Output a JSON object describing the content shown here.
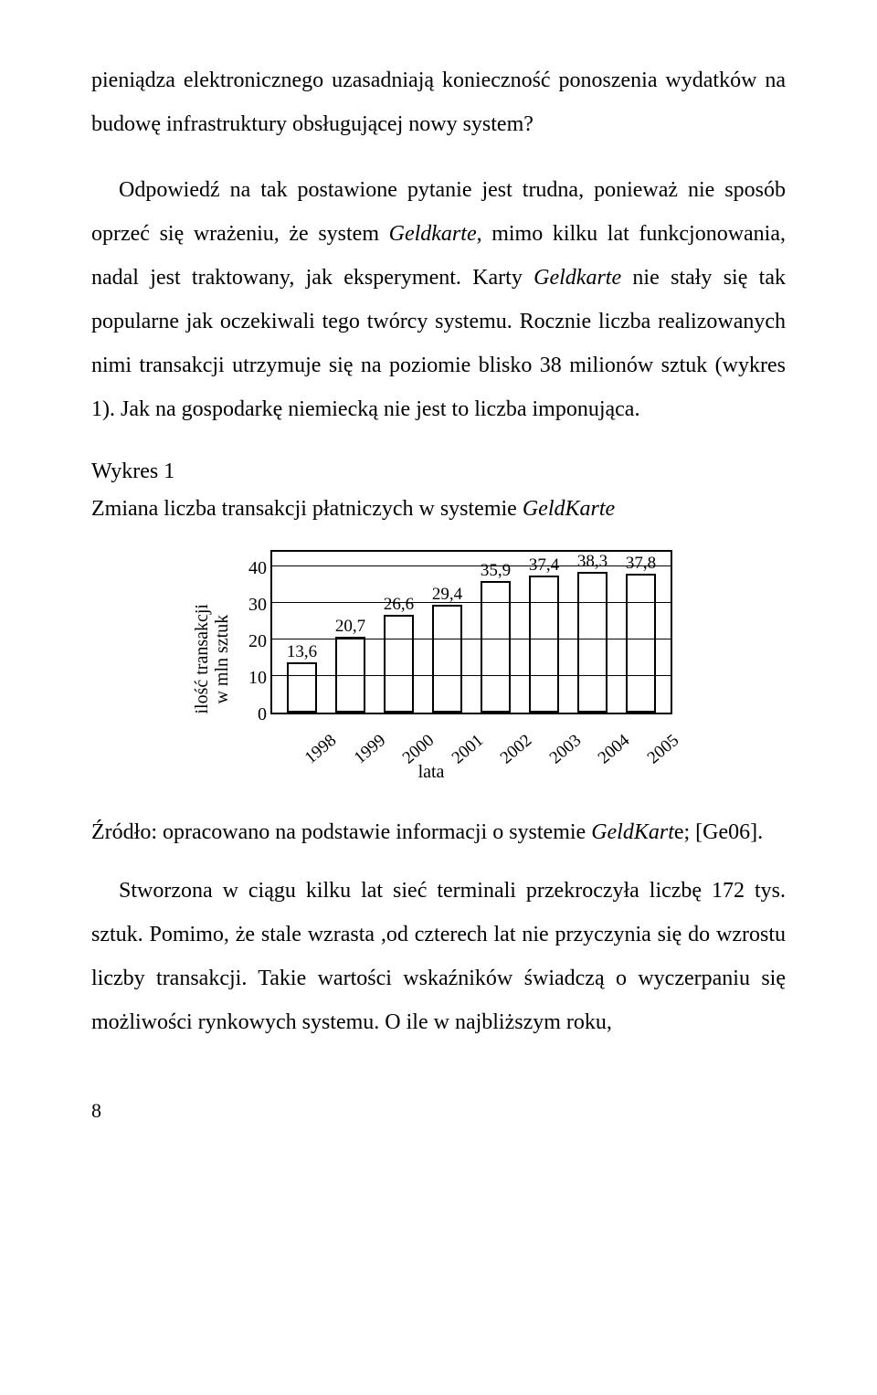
{
  "para1": "pieniądza elektronicznego uzasadniają konieczność ponoszenia wydatków na budowę infrastruktury obsługującej nowy system?",
  "para2_a": "Odpowiedź na tak postawione pytanie jest trudna, ponieważ nie sposób oprzeć się wrażeniu, że system ",
  "para2_i1": "Geldkarte",
  "para2_b": ", mimo kilku lat funkcjonowania, nadal jest traktowany, jak eksperyment. Karty ",
  "para2_i2": "Geldkarte",
  "para2_c": " nie stały się tak popularne jak oczekiwali tego twórcy systemu. Rocznie liczba realizowanych nimi transakcji utrzymuje się na poziomie blisko 38 milionów sztuk (wykres 1). Jak na gospodarkę niemiecką nie jest to liczba imponująca.",
  "wykres_label": "Wykres 1",
  "wykres_title_a": "Zmiana liczba transakcji płatniczych w systemie ",
  "wykres_title_i": "GeldKarte",
  "chart": {
    "type": "bar",
    "ylabel_line1": "ilość transakcji",
    "ylabel_line2": "w mln sztuk",
    "xlabel": "lata",
    "ymax": 45,
    "yticks": [
      40,
      30,
      20,
      10,
      0
    ],
    "categories": [
      "1998",
      "1999",
      "2000",
      "2001",
      "2002",
      "2003",
      "2004",
      "2005"
    ],
    "values": [
      13.6,
      20.7,
      26.6,
      29.4,
      35.9,
      37.4,
      38.3,
      37.8
    ],
    "value_labels": [
      "13,6",
      "20,7",
      "26,6",
      "29,4",
      "35,9",
      "37,4",
      "38,3",
      "37,8"
    ],
    "bar_fill": "#ffffff",
    "bar_border": "#000000",
    "grid_color": "#000000",
    "background": "#ffffff"
  },
  "source_a": "Źródło: opracowano na podstawie informacji o systemie ",
  "source_i": "GeldKart",
  "source_b": "e; [Ge06].",
  "para3": "Stworzona w ciągu kilku lat sieć terminali przekroczyła liczbę 172 tys. sztuk. Pomimo, że stale wzrasta ,od czterech lat nie przyczynia się do wzrostu liczby transakcji. Takie wartości wskaźników świadczą o wyczerpaniu się możliwości rynkowych systemu. O ile w najbliższym roku,",
  "page_number": "8"
}
